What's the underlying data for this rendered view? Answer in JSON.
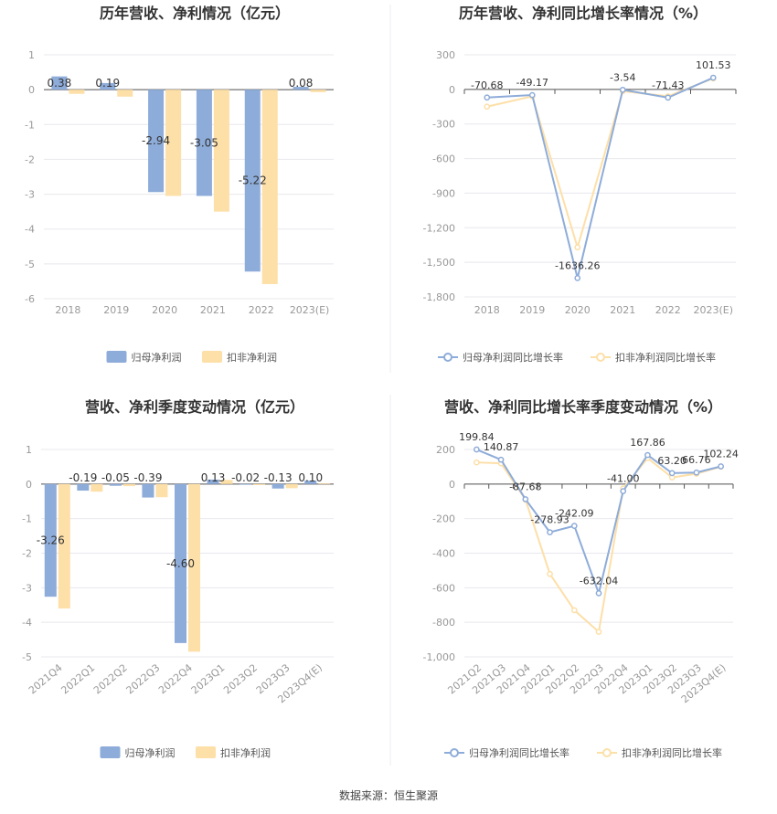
{
  "source": "数据来源：恒生聚源",
  "legend_bar": [
    "归母净利润",
    "扣非净利润"
  ],
  "legend_line": [
    "归母净利润同比增长率",
    "扣非净利润同比增长率"
  ],
  "colors": {
    "blue": "#8eacd9",
    "orange": "#fddfa8",
    "grid": "#e8e8ee",
    "axis": "#555555",
    "tick": "#999999",
    "label": "#333333"
  },
  "chart_data": [
    {
      "type": "bar",
      "title": "历年营收、净利情况（亿元）",
      "categories": [
        "2018",
        "2019",
        "2020",
        "2021",
        "2022",
        "2023(E)"
      ],
      "ylim": [
        -6,
        1
      ],
      "yticks": [
        "1",
        "0",
        "-1",
        "-2",
        "-3",
        "-4",
        "-5",
        "-6"
      ],
      "series": [
        {
          "name": "归母净利润",
          "values": [
            0.38,
            0.19,
            -2.94,
            -3.05,
            -5.22,
            0.08
          ],
          "labels": [
            "0.38",
            "0.19",
            "-2.94",
            "-3.05",
            "-5.22",
            "0.08"
          ]
        },
        {
          "name": "扣非净利润",
          "values": [
            -0.12,
            -0.2,
            -3.05,
            -3.5,
            -5.58,
            -0.07
          ]
        }
      ],
      "legend": "bottom"
    },
    {
      "type": "line",
      "title": "历年营收、净利同比增长率情况（%）",
      "categories": [
        "2018",
        "2019",
        "2020",
        "2021",
        "2022",
        "2023(E)"
      ],
      "ylim": [
        -1800,
        300
      ],
      "yticks": [
        "300",
        "0",
        "-300",
        "-600",
        "-900",
        "-1,200",
        "-1,500",
        "-1,800"
      ],
      "series": [
        {
          "name": "归母净利润同比增长率",
          "values": [
            -70.68,
            -49.17,
            -1636.26,
            -3.54,
            -71.43,
            101.53
          ],
          "labels": [
            "-70.68",
            "-49.17",
            "-1636.26",
            "-3.54",
            "-71.43",
            "101.53"
          ]
        },
        {
          "name": "扣非净利润同比增长率",
          "values": [
            -150,
            -60,
            -1370,
            -15,
            -60,
            96
          ]
        }
      ],
      "legend": "bottom"
    },
    {
      "type": "bar",
      "title": "营收、净利季度变动情况（亿元）",
      "categories": [
        "2021Q4",
        "2022Q1",
        "2022Q2",
        "2022Q3",
        "2022Q4",
        "2023Q1",
        "2023Q2",
        "2023Q3",
        "2023Q4(E)"
      ],
      "ylim": [
        -5,
        1
      ],
      "yticks": [
        "1",
        "0",
        "-1",
        "-2",
        "-3",
        "-4",
        "-5"
      ],
      "series": [
        {
          "name": "归母净利润",
          "values": [
            -3.26,
            -0.19,
            -0.05,
            -0.39,
            -4.6,
            0.13,
            -0.02,
            -0.13,
            0.1
          ],
          "labels": [
            "-3.26",
            "-0.19",
            "-0.05",
            "-0.39",
            "-4.60",
            "0.13",
            "-0.02",
            "-0.13",
            "0.10"
          ]
        },
        {
          "name": "扣非净利润",
          "values": [
            -3.6,
            -0.22,
            -0.06,
            -0.38,
            -4.85,
            0.12,
            -0.03,
            -0.12,
            0.02
          ]
        }
      ],
      "legend": "bottom"
    },
    {
      "type": "line",
      "title": "营收、净利同比增长率季度变动情况（%）",
      "categories": [
        "2021Q2",
        "2021Q3",
        "2021Q4",
        "2022Q1",
        "2022Q2",
        "2022Q3",
        "2022Q4",
        "2023Q1",
        "2023Q2",
        "2023Q3",
        "2023Q4(E)"
      ],
      "ylim": [
        -1000,
        200
      ],
      "yticks": [
        "200",
        "0",
        "-200",
        "-400",
        "-600",
        "-800",
        "-1,000"
      ],
      "series": [
        {
          "name": "归母净利润同比增长率",
          "values": [
            199.84,
            140.87,
            -87.68,
            -278.93,
            -242.09,
            -632.04,
            -41.0,
            167.86,
            63.2,
            66.76,
            102.24
          ],
          "labels": [
            "199.84",
            "140.87",
            "-87.68",
            "-278.93",
            "-242.09",
            "-632.04",
            "-41.00",
            "167.86",
            "63.20",
            "66.76",
            "102.24"
          ]
        },
        {
          "name": "扣非净利润同比增长率",
          "values": [
            125,
            120,
            -90,
            -520,
            -730,
            -855,
            -25,
            150,
            38,
            60,
            100
          ]
        }
      ],
      "legend": "bottom"
    }
  ]
}
